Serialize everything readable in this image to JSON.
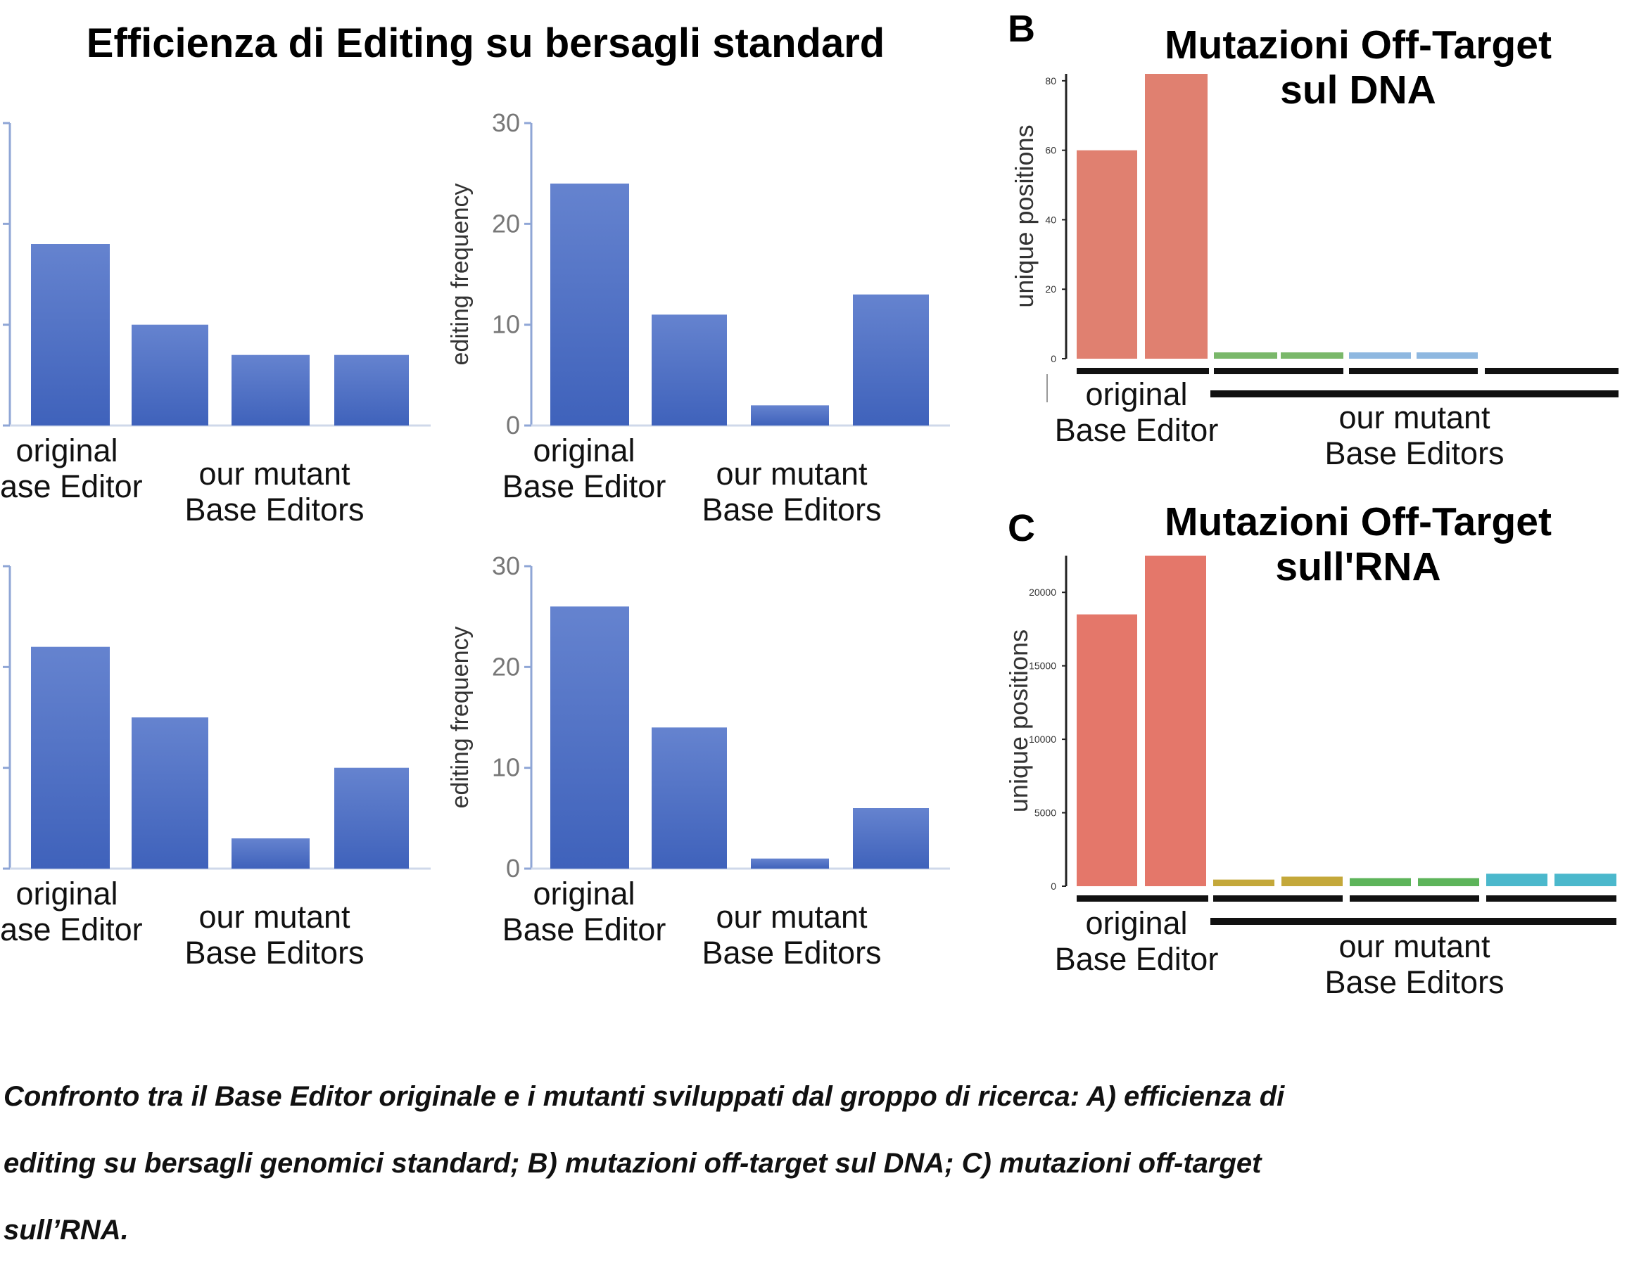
{
  "panel_a": {
    "title": "Efficienza di Editing su bersagli standard"
  },
  "panel_b": {
    "letter": "B",
    "title_line1": "Mutazioni Off-Target",
    "title_line2": "sul DNA"
  },
  "panel_c": {
    "letter": "C",
    "title_line1": "Mutazioni Off-Target",
    "title_line2": "sull'RNA"
  },
  "group_labels": {
    "orig_line1": "original",
    "orig_line2": "Base Editor",
    "orig_line2_cropped": "ase Editor",
    "mut_line1": "our mutant",
    "mut_line2": "Base Editors"
  },
  "caption": {
    "line1": "Confronto tra il Base Editor originale e i mutanti sviluppati dal groppo di ricerca: A) efficienza di",
    "line2": "editing su bersagli genomici standard; B) mutazioni off-target sul DNA; C) mutazioni off-target",
    "line3": "sull’RNA."
  },
  "chart_data": [
    {
      "type": "bar",
      "panel": "A-top-left",
      "categories": [
        "original Base Editor",
        "our mutant Base Editors 1",
        "our mutant Base Editors 2",
        "our mutant Base Editors 3"
      ],
      "values": [
        18,
        10,
        7,
        7
      ],
      "ylim": [
        0,
        30
      ],
      "yticks": [],
      "ylabel": "",
      "color": "#5577c8"
    },
    {
      "type": "bar",
      "panel": "A-top-right",
      "categories": [
        "original Base Editor",
        "our mutant Base Editors 1",
        "our mutant Base Editors 2",
        "our mutant Base Editors 3"
      ],
      "values": [
        24,
        11,
        2,
        13
      ],
      "ylim": [
        0,
        30
      ],
      "yticks": [
        "0",
        "10",
        "20",
        "30"
      ],
      "ylabel": "editing frequency",
      "color": "#5577c8"
    },
    {
      "type": "bar",
      "panel": "A-bottom-left",
      "categories": [
        "original Base Editor",
        "our mutant Base Editors 1",
        "our mutant Base Editors 2",
        "our mutant Base Editors 3"
      ],
      "values": [
        22,
        15,
        3,
        10
      ],
      "ylim": [
        0,
        30
      ],
      "yticks": [],
      "ylabel": "",
      "color": "#5577c8"
    },
    {
      "type": "bar",
      "panel": "A-bottom-right",
      "categories": [
        "original Base Editor",
        "our mutant Base Editors 1",
        "our mutant Base Editors 2",
        "our mutant Base Editors 3"
      ],
      "values": [
        26,
        14,
        1,
        6
      ],
      "ylim": [
        0,
        30
      ],
      "yticks": [
        "0",
        "10",
        "20",
        "30"
      ],
      "ylabel": "editing frequency",
      "color": "#5577c8"
    },
    {
      "type": "bar",
      "panel": "B",
      "categories": [
        "original 1",
        "original 2",
        "mutant 1",
        "mutant 2",
        "mutant 3",
        "mutant 4",
        "mutant 5",
        "mutant 6"
      ],
      "values": [
        60,
        82,
        1,
        1,
        1,
        1,
        0,
        0
      ],
      "colors": [
        "#e08070",
        "#e08070",
        "#7ab86a",
        "#7ab86a",
        "#8fb8e0",
        "#8fb8e0",
        "#ffffff",
        "#ffffff"
      ],
      "ylim": [
        0,
        82
      ],
      "yticks": [
        "0",
        "20",
        "40",
        "60",
        "80"
      ],
      "ylabel": "unique positions"
    },
    {
      "type": "bar",
      "panel": "C",
      "categories": [
        "original 1",
        "original 2",
        "mutant 1",
        "mutant 2",
        "mutant 3",
        "mutant 4",
        "mutant 5",
        "mutant 6"
      ],
      "values": [
        18500,
        22500,
        450,
        650,
        550,
        550,
        850,
        850
      ],
      "colors": [
        "#e4776a",
        "#e4776a",
        "#c4a83a",
        "#c4a83a",
        "#5db45a",
        "#5db45a",
        "#4bb8cc",
        "#4bb8cc"
      ],
      "ylim": [
        0,
        22500
      ],
      "yticks": [
        "0",
        "5000",
        "10000",
        "15000",
        "20000"
      ],
      "ylabel": "unique positions"
    }
  ]
}
